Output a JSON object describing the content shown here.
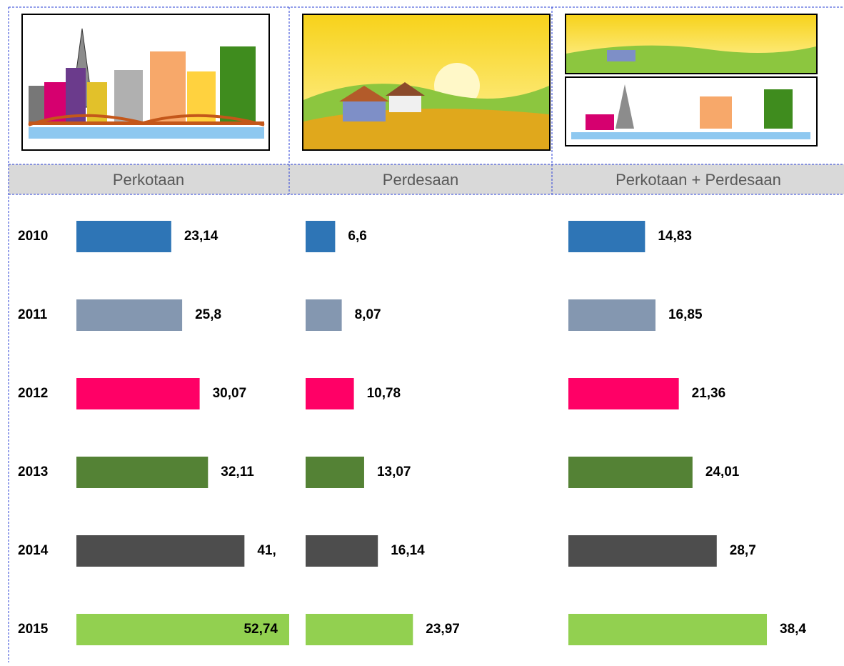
{
  "chart_data": [
    {
      "type": "bar",
      "orientation": "horizontal",
      "title": "Perkotaan",
      "categories": [
        "2010",
        "2011",
        "2012",
        "2013",
        "2014",
        "2015"
      ],
      "colors": [
        "#2e75b6",
        "#8497b0",
        "#ff0066",
        "#548235",
        "#4d4d4d",
        "#92d050"
      ],
      "values": [
        23.14,
        25.8,
        30.07,
        32.11,
        41,
        52.74
      ],
      "value_labels": [
        "23,14",
        "25,8",
        "30,07",
        "32,11",
        "41,",
        "52,74"
      ]
    },
    {
      "type": "bar",
      "orientation": "horizontal",
      "title": "Perdesaan",
      "colors": [
        "#2e75b6",
        "#8497b0",
        "#ff0066",
        "#548235",
        "#4d4d4d",
        "#92d050"
      ],
      "values": [
        6.6,
        8.07,
        10.78,
        13.07,
        16.14,
        23.97
      ],
      "value_labels": [
        "6,6",
        "8,07",
        "10,78",
        "13,07",
        "16,14",
        "23,97"
      ]
    },
    {
      "type": "bar",
      "orientation": "horizontal",
      "title": "Perkotaan + Perdesaan",
      "colors": [
        "#2e75b6",
        "#8497b0",
        "#ff0066",
        "#548235",
        "#4d4d4d",
        "#92d050"
      ],
      "values": [
        14.83,
        16.85,
        21.36,
        24.01,
        28.7,
        38.4
      ],
      "value_labels": [
        "14,83",
        "16,85",
        "21,36",
        "24,01",
        "28,7",
        "38,4"
      ]
    }
  ]
}
